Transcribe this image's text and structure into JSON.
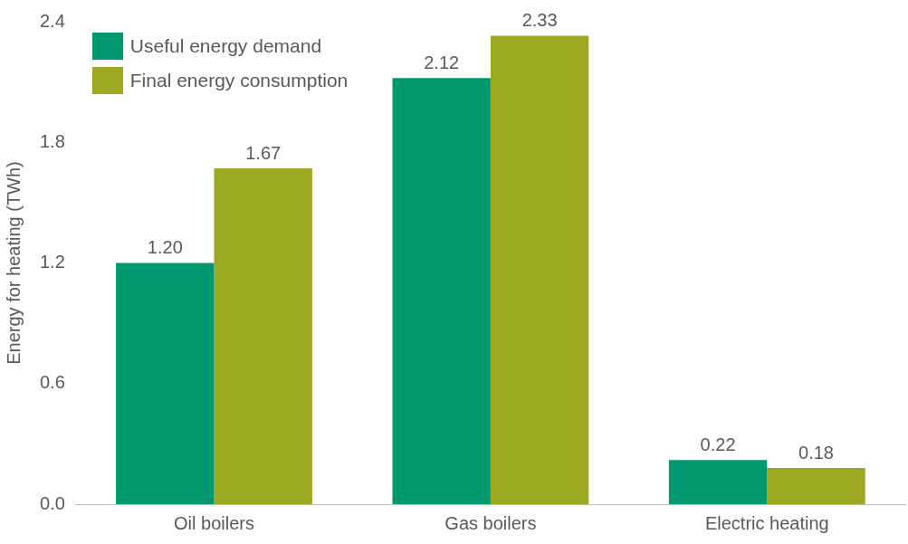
{
  "chart_data": {
    "type": "bar",
    "ylabel": "Energy for heating (TWh)",
    "categories": [
      "Oil boilers",
      "Gas boilers",
      "Electric heating"
    ],
    "series": [
      {
        "name": "Useful energy demand",
        "color": "#00996f",
        "values": [
          1.2,
          2.12,
          0.22
        ],
        "value_labels": [
          "1.20",
          "2.12",
          "0.22"
        ]
      },
      {
        "name": "Final energy consumption",
        "color": "#9ca822",
        "values": [
          1.67,
          2.33,
          0.18
        ],
        "value_labels": [
          "1.67",
          "2.33",
          "0.18"
        ]
      }
    ],
    "ylim": [
      0,
      2.4
    ],
    "yticks": [
      {
        "value": 0,
        "label": "0.0"
      },
      {
        "value": 0.6,
        "label": "0.6"
      },
      {
        "value": 1.2,
        "label": "1.2"
      },
      {
        "value": 1.8,
        "label": "1.8"
      },
      {
        "value": 2.4,
        "label": "2.4"
      }
    ],
    "grid": false,
    "legend": "top left"
  }
}
